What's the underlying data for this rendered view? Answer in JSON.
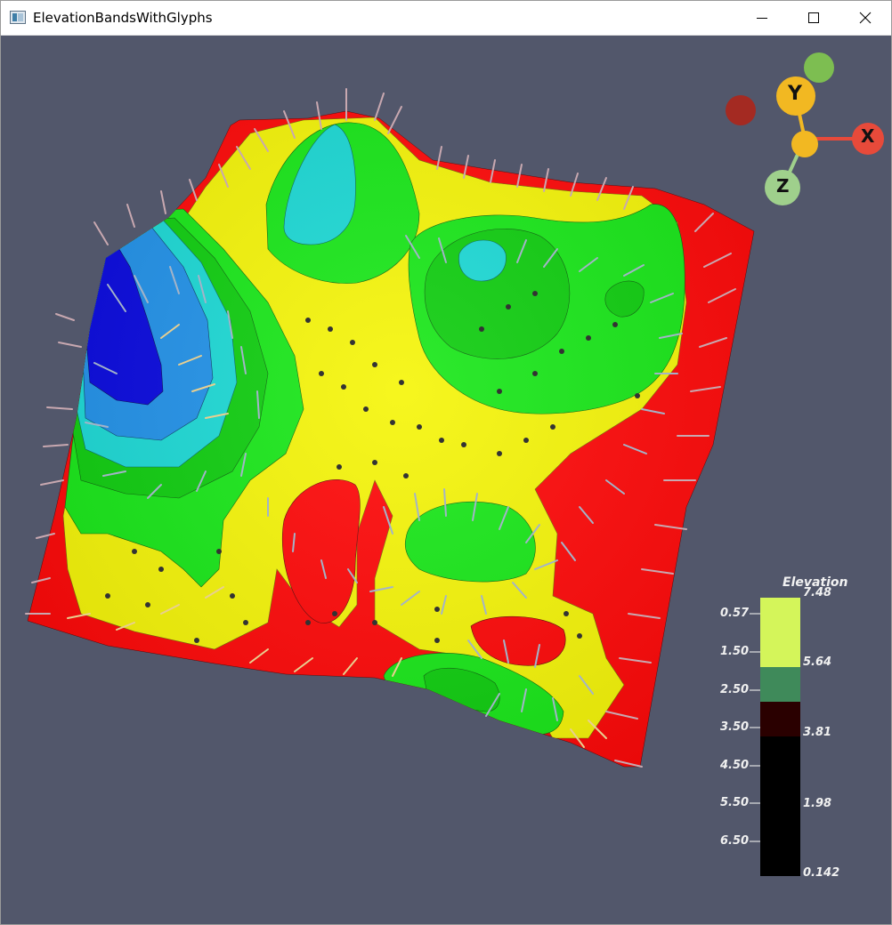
{
  "window": {
    "title": "ElevationBandsWithGlyphs"
  },
  "colors": {
    "background": "#52576b",
    "band_red": "#ff0000",
    "band_yellow": "#f5f500",
    "band_green": "#11e711",
    "band_dark_green": "#07cc07",
    "band_cyan": "#14d8d4",
    "band_blue": "#0000dd",
    "axis_x": "#e74a3a",
    "axis_y": "#f2b822",
    "axis_z": "#9fd08c"
  },
  "orientation_widget": {
    "x_label": "X",
    "y_label": "Y",
    "z_label": "Z"
  },
  "legend": {
    "title": "Elevation",
    "right_labels": [
      "7.48",
      "5.64",
      "3.81",
      "1.98",
      "0.142"
    ],
    "left_labels": [
      "0.57",
      "1.50",
      "2.50",
      "3.50",
      "4.50",
      "5.50",
      "6.50"
    ],
    "band_colors": [
      "#d4f55a",
      "#3f8a5a",
      "#2a0000",
      "#000000"
    ]
  },
  "icons": {
    "app": "vtk-window-icon",
    "minimize": "minimize-icon",
    "maximize": "maximize-icon",
    "close": "close-icon"
  }
}
